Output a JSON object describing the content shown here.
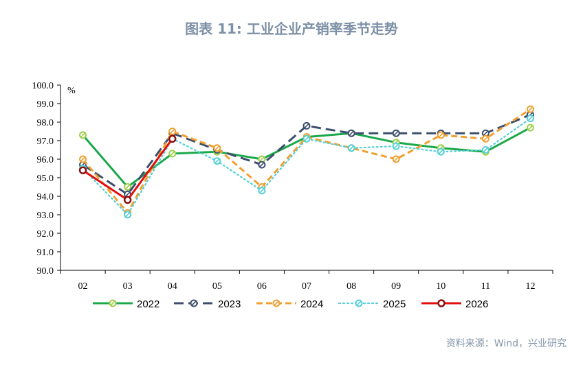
{
  "title": "图表 11: 工业企业产销率季节走势",
  "source": "资料来源：Wind，兴业研究",
  "chart_data": {
    "type": "line",
    "unit": "%",
    "x": [
      "02",
      "03",
      "04",
      "05",
      "06",
      "07",
      "08",
      "09",
      "10",
      "11",
      "12"
    ],
    "ylim": [
      90.0,
      100.0
    ],
    "yticks": [
      "90.0",
      "91.0",
      "92.0",
      "93.0",
      "94.0",
      "95.0",
      "96.0",
      "97.0",
      "98.0",
      "99.0",
      "100.0"
    ],
    "legend_position": "bottom",
    "grid": false,
    "series": [
      {
        "name": "2022",
        "color": "#1aa84a",
        "dash": "solid",
        "marker_color": "#9bd04a",
        "values": [
          97.3,
          94.5,
          96.3,
          96.4,
          96.0,
          97.2,
          97.4,
          96.9,
          96.6,
          96.4,
          97.7
        ]
      },
      {
        "name": "2023",
        "color": "#3c4e6c",
        "dash": "long-dash",
        "marker_color": "#3c4e6c",
        "values": [
          95.7,
          94.1,
          97.4,
          96.5,
          95.7,
          97.8,
          97.4,
          97.4,
          97.4,
          97.4,
          98.4
        ]
      },
      {
        "name": "2024",
        "color": "#f0a030",
        "dash": "dash",
        "marker_color": "#f0a030",
        "values": [
          96.0,
          93.1,
          97.5,
          96.6,
          94.5,
          97.2,
          96.6,
          96.0,
          97.3,
          97.1,
          98.7
        ]
      },
      {
        "name": "2025",
        "color": "#55d0d8",
        "dash": "dot",
        "marker_color": "#55d0d8",
        "values": [
          95.5,
          93.0,
          97.1,
          95.9,
          94.3,
          97.1,
          96.6,
          96.7,
          96.4,
          96.5,
          98.2
        ]
      },
      {
        "name": "2026",
        "color": "#e01010",
        "dash": "solid",
        "marker_color": "#8a1010",
        "values": [
          95.4,
          93.8,
          97.1,
          null,
          null,
          null,
          null,
          null,
          null,
          null,
          null
        ]
      }
    ]
  }
}
